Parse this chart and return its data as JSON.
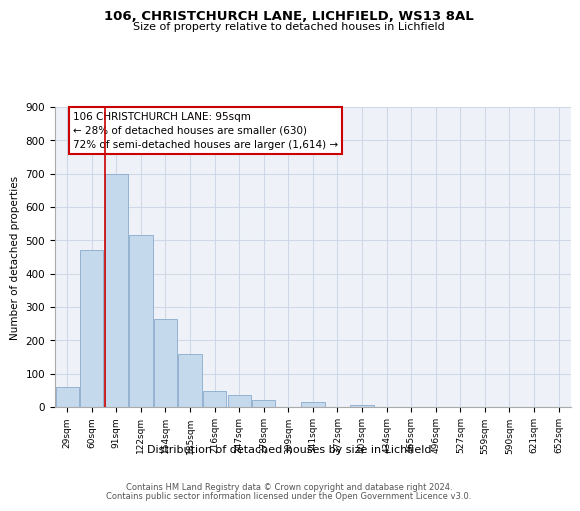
{
  "title": "106, CHRISTCHURCH LANE, LICHFIELD, WS13 8AL",
  "subtitle": "Size of property relative to detached houses in Lichfield",
  "xlabel": "Distribution of detached houses by size in Lichfield",
  "ylabel": "Number of detached properties",
  "bar_labels": [
    "29sqm",
    "60sqm",
    "91sqm",
    "122sqm",
    "154sqm",
    "185sqm",
    "216sqm",
    "247sqm",
    "278sqm",
    "309sqm",
    "341sqm",
    "372sqm",
    "403sqm",
    "434sqm",
    "465sqm",
    "496sqm",
    "527sqm",
    "559sqm",
    "590sqm",
    "621sqm",
    "652sqm"
  ],
  "bar_values": [
    60,
    470,
    700,
    515,
    265,
    160,
    48,
    35,
    20,
    0,
    15,
    0,
    5,
    0,
    0,
    0,
    0,
    0,
    0,
    0,
    0
  ],
  "bar_color": "#c5d9ed",
  "bar_edge_color": "#8aabcc",
  "highlight_line_color": "#cc0000",
  "annotation_title": "106 CHRISTCHURCH LANE: 95sqm",
  "annotation_line1": "← 28% of detached houses are smaller (630)",
  "annotation_line2": "72% of semi-detached houses are larger (1,614) →",
  "annotation_box_color": "#ffffff",
  "annotation_box_edge": "#cc0000",
  "ylim": [
    0,
    900
  ],
  "yticks": [
    0,
    100,
    200,
    300,
    400,
    500,
    600,
    700,
    800,
    900
  ],
  "footer_line1": "Contains HM Land Registry data © Crown copyright and database right 2024.",
  "footer_line2": "Contains public sector information licensed under the Open Government Licence v3.0.",
  "background_color": "#ffffff",
  "grid_color": "#d0d8e8",
  "plot_bg_color": "#eef2f8"
}
